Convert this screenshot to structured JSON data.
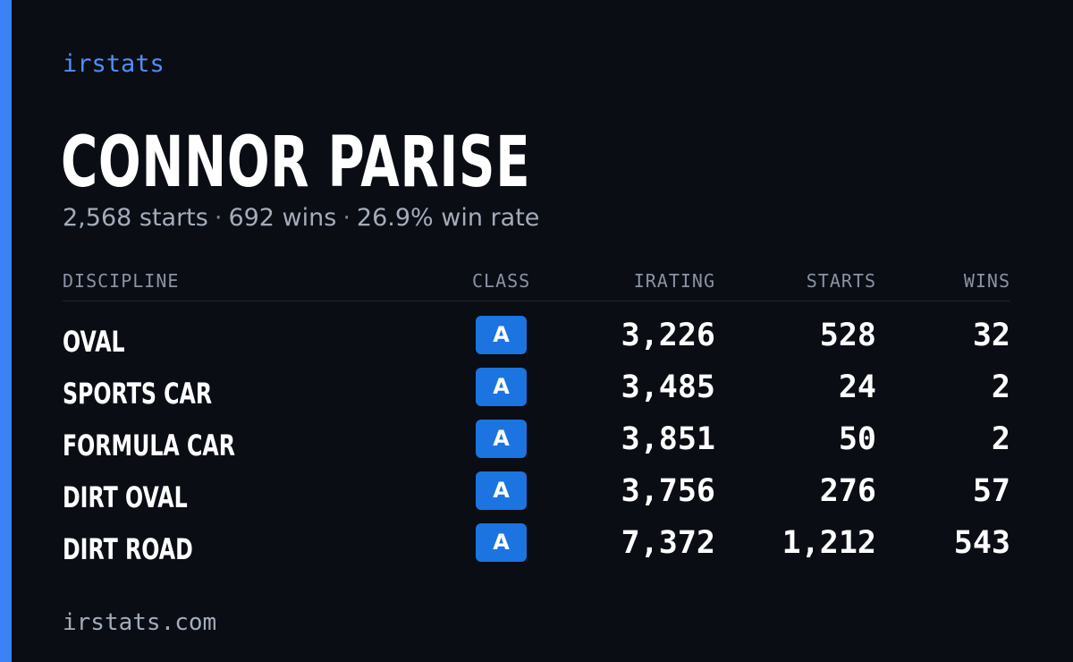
{
  "brand": "irstats",
  "driver": {
    "name": "CONNOR PARISE",
    "starts_text": "2,568 starts",
    "wins_text": "692 wins",
    "win_rate_text": "26.9% win rate",
    "separator": "·"
  },
  "table": {
    "headers": {
      "discipline": "DISCIPLINE",
      "class": "CLASS",
      "irating": "IRATING",
      "starts": "STARTS",
      "wins": "WINS"
    },
    "rows": [
      {
        "discipline": "OVAL",
        "class": "A",
        "irating": "3,226",
        "starts": "528",
        "wins": "32"
      },
      {
        "discipline": "SPORTS CAR",
        "class": "A",
        "irating": "3,485",
        "starts": "24",
        "wins": "2"
      },
      {
        "discipline": "FORMULA CAR",
        "class": "A",
        "irating": "3,851",
        "starts": "50",
        "wins": "2"
      },
      {
        "discipline": "DIRT OVAL",
        "class": "A",
        "irating": "3,756",
        "starts": "276",
        "wins": "57"
      },
      {
        "discipline": "DIRT ROAD",
        "class": "A",
        "irating": "7,372",
        "starts": "1,212",
        "wins": "543"
      }
    ]
  },
  "footer": "irstats.com",
  "colors": {
    "background": "#0a0d14",
    "accent": "#3b82f6",
    "badge": "#1b74e0",
    "muted_text": "#a3acba"
  }
}
